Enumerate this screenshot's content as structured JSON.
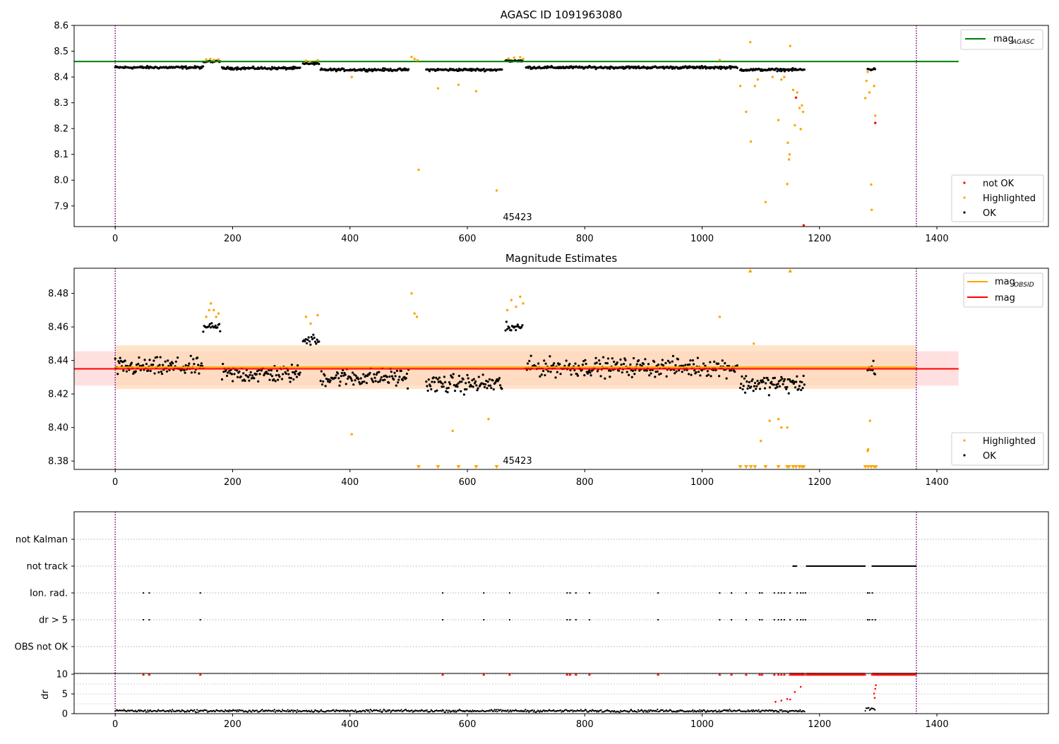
{
  "colors": {
    "ok": "#000000",
    "highlighted": "#ffa500",
    "not_ok": "#ff0000",
    "agasc_line": "#008000",
    "mag_line": "#ff0000",
    "mag_obsid_line": "#ffa500",
    "span_line": "#800080",
    "band_obsid": "#ffd9b3",
    "band_mag": "#ffcccc"
  },
  "chart_data": [
    {
      "type": "scatter",
      "title": "AGASC ID 1091963080",
      "xlim": [
        -70,
        1590
      ],
      "ylim": [
        7.82,
        8.6
      ],
      "xticks": [
        "0",
        "200",
        "400",
        "600",
        "800",
        "1000",
        "1200",
        "1400"
      ],
      "yticks": [
        "8.6",
        "8.5",
        "8.4",
        "8.3",
        "8.2",
        "8.1",
        "8.0",
        "7.9"
      ],
      "obsid_annotation": "45423",
      "obsid_x": 680,
      "span_lines_x": [
        0,
        1365
      ],
      "reference_lines": [
        {
          "name": "mag_AGASC",
          "y": 8.46,
          "x_range": [
            -70,
            1437
          ]
        }
      ],
      "legend_top": {
        "position": "top-right",
        "base": "mag",
        "subscript": "AGASC"
      },
      "legend_bottom": {
        "position": "bottom-right",
        "entries": [
          "not OK",
          "Highlighted",
          "OK"
        ]
      },
      "series_ok": {
        "segments": [
          {
            "x": [
              0,
              150
            ],
            "y_center": 8.437
          },
          {
            "x": [
              182,
              315
            ],
            "y_center": 8.434
          },
          {
            "x": [
              350,
              500
            ],
            "y_center": 8.428
          },
          {
            "x": [
              530,
              660
            ],
            "y_center": 8.428
          },
          {
            "x": [
              700,
              1060
            ],
            "y_center": 8.437
          },
          {
            "x": [
              1065,
              1175
            ],
            "y_center": 8.428
          },
          {
            "x": [
              1282,
              1295
            ],
            "y_center": 8.43
          }
        ],
        "raised_segments": [
          {
            "x": [
              150,
              180
            ],
            "y_center": 8.46
          },
          {
            "x": [
              320,
              348
            ],
            "y_center": 8.452
          },
          {
            "x": [
              665,
              695
            ],
            "y_center": 8.462
          }
        ]
      },
      "series_highlighted": [
        [
          155,
          8.468
        ],
        [
          162,
          8.47
        ],
        [
          168,
          8.466
        ],
        [
          176,
          8.468
        ],
        [
          325,
          8.463
        ],
        [
          332,
          8.46
        ],
        [
          345,
          8.465
        ],
        [
          403,
          8.4
        ],
        [
          505,
          8.478
        ],
        [
          510,
          8.47
        ],
        [
          515,
          8.465
        ],
        [
          517,
          8.04
        ],
        [
          550,
          8.356
        ],
        [
          585,
          8.37
        ],
        [
          615,
          8.345
        ],
        [
          650,
          7.96
        ],
        [
          670,
          8.472
        ],
        [
          680,
          8.475
        ],
        [
          690,
          8.477
        ],
        [
          695,
          8.47
        ],
        [
          1030,
          8.466
        ],
        [
          1065,
          8.365
        ],
        [
          1075,
          8.265
        ],
        [
          1082,
          8.535
        ],
        [
          1083,
          8.15
        ],
        [
          1090,
          8.365
        ],
        [
          1095,
          8.39
        ],
        [
          1108,
          7.915
        ],
        [
          1120,
          8.4
        ],
        [
          1130,
          8.233
        ],
        [
          1135,
          8.39
        ],
        [
          1140,
          8.4
        ],
        [
          1145,
          7.985
        ],
        [
          1146,
          8.145
        ],
        [
          1148,
          8.08
        ],
        [
          1149,
          8.1
        ],
        [
          1150,
          8.52
        ],
        [
          1155,
          8.35
        ],
        [
          1158,
          8.213
        ],
        [
          1162,
          8.34
        ],
        [
          1166,
          8.28
        ],
        [
          1168,
          8.198
        ],
        [
          1170,
          8.29
        ],
        [
          1172,
          8.265
        ],
        [
          1278,
          8.318
        ],
        [
          1280,
          8.385
        ],
        [
          1282,
          8.42
        ],
        [
          1285,
          8.34
        ],
        [
          1288,
          7.983
        ],
        [
          1289,
          7.885
        ],
        [
          1293,
          8.365
        ],
        [
          1295,
          8.25
        ]
      ],
      "series_not_ok": [
        [
          1160,
          8.32
        ],
        [
          1173,
          7.825
        ],
        [
          1295,
          8.222
        ]
      ]
    },
    {
      "type": "scatter",
      "title": "Magnitude Estimates",
      "xlim": [
        -70,
        1590
      ],
      "ylim": [
        8.375,
        8.495
      ],
      "xticks": [
        "0",
        "200",
        "400",
        "600",
        "800",
        "1000",
        "1200",
        "1400"
      ],
      "yticks": [
        "8.48",
        "8.46",
        "8.44",
        "8.42",
        "8.40",
        "8.38"
      ],
      "obsid_annotation": "45423",
      "obsid_x": 680,
      "span_lines_x": [
        0,
        1365
      ],
      "reference_lines": [
        {
          "name": "mag_OBSID",
          "y": 8.436,
          "x_range": [
            0,
            1365
          ],
          "band": [
            8.423,
            8.449
          ]
        },
        {
          "name": "mag",
          "y": 8.435,
          "x_range": [
            -70,
            1437
          ],
          "band": [
            8.425,
            8.4455
          ]
        }
      ],
      "legend_top": {
        "position": "top-right",
        "base": "mag",
        "subscript": "OBSID",
        "second": "mag"
      },
      "legend_bottom": {
        "position": "bottom-right",
        "entries": [
          "Highlighted",
          "OK"
        ]
      },
      "series_ok": {
        "segments": [
          {
            "x": [
              0,
              150
            ],
            "y_center": 8.436
          },
          {
            "x": [
              182,
              315
            ],
            "y_center": 8.432
          },
          {
            "x": [
              350,
              500
            ],
            "y_center": 8.43
          },
          {
            "x": [
              530,
              660
            ],
            "y_center": 8.426
          },
          {
            "x": [
              700,
              1060
            ],
            "y_center": 8.436
          },
          {
            "x": [
              1065,
              1175
            ],
            "y_center": 8.426
          },
          {
            "x": [
              1282,
              1295
            ],
            "y_center": 8.435
          }
        ],
        "raised_segments": [
          {
            "x": [
              150,
              180
            ],
            "y_center": 8.46
          },
          {
            "x": [
              320,
              348
            ],
            "y_center": 8.452
          },
          {
            "x": [
              665,
              695
            ],
            "y_center": 8.46
          }
        ]
      },
      "series_highlighted": [
        [
          155,
          8.466
        ],
        [
          160,
          8.47
        ],
        [
          163,
          8.474
        ],
        [
          168,
          8.47
        ],
        [
          172,
          8.466
        ],
        [
          176,
          8.468
        ],
        [
          325,
          8.466
        ],
        [
          333,
          8.462
        ],
        [
          345,
          8.467
        ],
        [
          403,
          8.396
        ],
        [
          505,
          8.48
        ],
        [
          510,
          8.468
        ],
        [
          514,
          8.466
        ],
        [
          575,
          8.398
        ],
        [
          636,
          8.405
        ],
        [
          668,
          8.47
        ],
        [
          675,
          8.476
        ],
        [
          683,
          8.472
        ],
        [
          690,
          8.478
        ],
        [
          695,
          8.474
        ],
        [
          1030,
          8.466
        ],
        [
          1088,
          8.45
        ],
        [
          1100,
          8.392
        ],
        [
          1115,
          8.404
        ],
        [
          1130,
          8.405
        ],
        [
          1135,
          8.4
        ],
        [
          1145,
          8.4
        ],
        [
          1282,
          8.386
        ],
        [
          1283,
          8.387
        ],
        [
          1286,
          8.404
        ]
      ],
      "series_highlighted_clipped_top_x": [
        1082,
        1150
      ],
      "series_highlighted_clipped_bottom_x": [
        517,
        550,
        585,
        615,
        650,
        1065,
        1075,
        1083,
        1090,
        1108,
        1130,
        1145,
        1148,
        1155,
        1160,
        1166,
        1170,
        1173,
        1278,
        1283,
        1288,
        1293,
        1296
      ]
    },
    {
      "type": "scatter",
      "title": "",
      "xlim": [
        -70,
        1590
      ],
      "xticks": [
        "0",
        "200",
        "400",
        "600",
        "800",
        "1000",
        "1200",
        "1400"
      ],
      "span_lines_x": [
        0,
        1365
      ],
      "flag_rows": [
        "not Kalman",
        "not track",
        "Ion. rad.",
        "dr > 5",
        "OBS not OK"
      ],
      "flags": {
        "not_track_ranges": [
          [
            1155,
            1162
          ],
          [
            1178,
            1278
          ],
          [
            1290,
            1365
          ]
        ],
        "ion_rad_x": [
          48,
          58,
          145,
          558,
          628,
          672,
          770,
          775,
          785,
          808,
          925,
          1030,
          1050,
          1075,
          1098,
          1102,
          1123,
          1130,
          1135,
          1140,
          1150,
          1162,
          1168,
          1172,
          1176,
          1282,
          1285,
          1290
        ],
        "dr5_x": [
          48,
          58,
          145,
          558,
          628,
          672,
          770,
          775,
          785,
          808,
          925,
          1030,
          1050,
          1075,
          1098,
          1102,
          1123,
          1130,
          1135,
          1140,
          1150,
          1162,
          1168,
          1172,
          1176,
          1282,
          1285,
          1290,
          1295
        ]
      },
      "dr_axis": {
        "ylabel": "dr",
        "ylim": [
          0,
          10.2
        ],
        "yticks": [
          "10",
          "5",
          "0"
        ],
        "clipped_red_ranges": [
          [
            1150,
            1175
          ],
          [
            1178,
            1278
          ],
          [
            1290,
            1365
          ]
        ],
        "clipped_red_x": [
          48,
          58,
          145,
          558,
          628,
          672,
          770,
          775,
          785,
          808,
          925,
          1030,
          1050,
          1075,
          1098,
          1102,
          1123,
          1130,
          1135,
          1140
        ],
        "red_values": [
          [
            1125,
            3.0
          ],
          [
            1135,
            3.3
          ],
          [
            1145,
            3.7
          ],
          [
            1150,
            3.6
          ],
          [
            1158,
            5.5
          ],
          [
            1168,
            6.8
          ],
          [
            1295,
            6.3
          ],
          [
            1296,
            7.2
          ],
          [
            1293,
            5.1
          ],
          [
            1294,
            4.0
          ]
        ]
      }
    }
  ]
}
